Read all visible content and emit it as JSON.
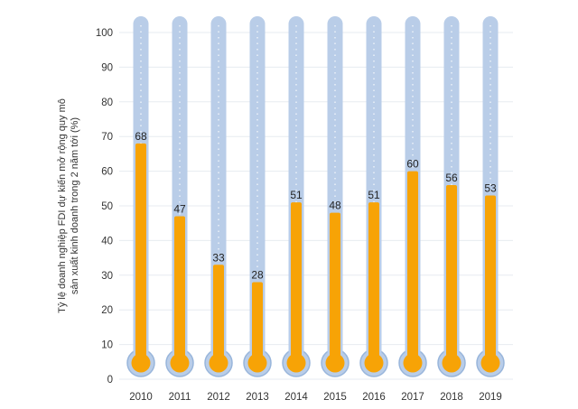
{
  "chart_data": {
    "type": "bar",
    "style": "thermometer",
    "title": "",
    "xlabel": "",
    "ylabel_lines": [
      "Tỷ lệ doanh nghiệp FDI dự kiến mở rộng quy mô",
      "sản xuất kinh doanh trong 2 năm tới (%)"
    ],
    "categories": [
      "2010",
      "2011",
      "2012",
      "2013",
      "2014",
      "2015",
      "2016",
      "2017",
      "2018",
      "2019"
    ],
    "values": [
      68,
      47,
      33,
      28,
      51,
      48,
      51,
      60,
      56,
      53
    ],
    "ylim": [
      0,
      100
    ],
    "yticks": [
      0,
      10,
      20,
      30,
      40,
      50,
      60,
      70,
      80,
      90,
      100
    ],
    "grid": true,
    "colors": {
      "fill": "#f7a306",
      "tube": "#b9cde8",
      "tube_border": "#98b5db",
      "tube_ticks": "#ffffff",
      "grid": "#e7ebf0"
    }
  }
}
